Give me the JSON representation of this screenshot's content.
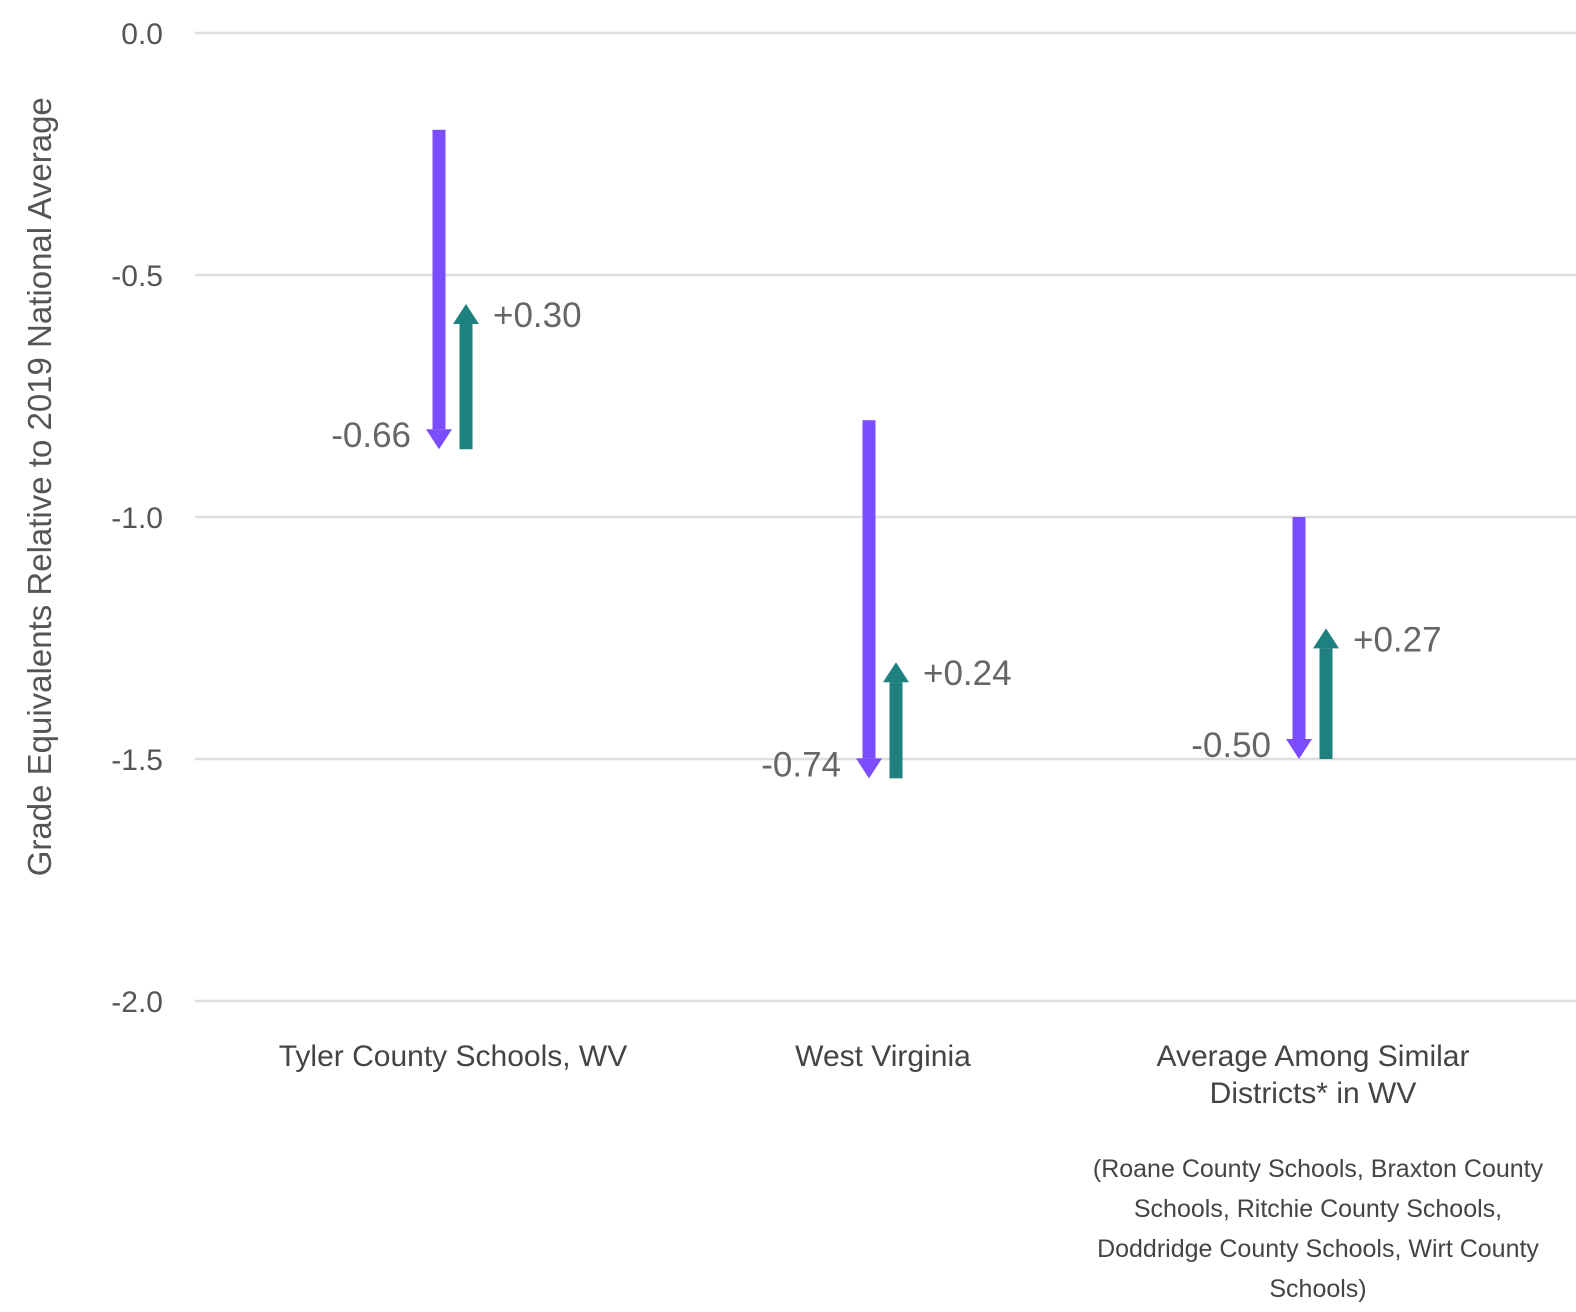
{
  "chart_data": {
    "type": "arrow",
    "title": "",
    "xlabel": "",
    "ylabel": "Grade Equivalents Relative to 2019 National Average",
    "ylim": [
      -2.0,
      0.0
    ],
    "yticks": [
      "0.0",
      "-0.5",
      "-1.0",
      "-1.5",
      "-2.0"
    ],
    "grid": true,
    "categories": [
      {
        "label_lines": [
          "Tyler County Schools, WV"
        ],
        "note_lines": []
      },
      {
        "label_lines": [
          "West Virginia"
        ],
        "note_lines": []
      },
      {
        "label_lines": [
          "Average Among Similar",
          "Districts* in WV"
        ],
        "note_lines": [
          "(Roane County Schools, Braxton County",
          "Schools, Ritchie County Schools,",
          "Doddridge County Schools, Wirt County",
          "Schools)"
        ]
      }
    ],
    "series": [
      {
        "color": "#7b4dff",
        "start": [
          -0.2,
          -0.8,
          -1.0
        ],
        "end": [
          -0.86,
          -1.54,
          -1.5
        ],
        "labels": [
          "-0.66",
          "-0.74",
          "-0.50"
        ]
      },
      {
        "color": "#1f8080",
        "start": [
          -0.86,
          -1.54,
          -1.5
        ],
        "end": [
          -0.56,
          -1.3,
          -1.23
        ],
        "labels": [
          "+0.30",
          "+0.24",
          "+0.27"
        ]
      }
    ]
  }
}
